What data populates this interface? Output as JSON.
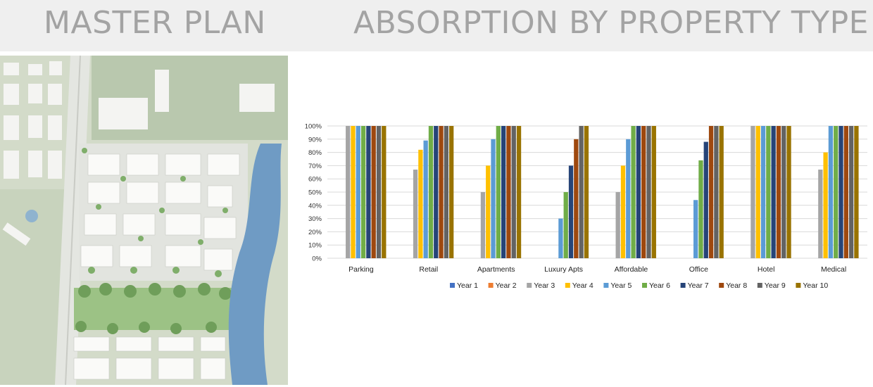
{
  "headings": {
    "left": "MASTER PLAN",
    "right": "ABSORPTION BY PROPERTY TYPE"
  },
  "plan_image": {
    "icon": "site-plan-map",
    "colors": {
      "land": "#cfd8c4",
      "water": "#6f9bc4",
      "trees": "#7fae6a",
      "buildings": "#f3f3f1",
      "roads": "#dadcd8"
    }
  },
  "chart_data": {
    "type": "bar",
    "categories": [
      "Parking",
      "Retail",
      "Apartments",
      "Luxury Apts",
      "Affordable",
      "Office",
      "Hotel",
      "Medical"
    ],
    "ylim": [
      0,
      100
    ],
    "yticks": [
      "0%",
      "10%",
      "20%",
      "30%",
      "40%",
      "50%",
      "60%",
      "70%",
      "80%",
      "90%",
      "100%"
    ],
    "grid": true,
    "legend_position": "bottom",
    "title": "",
    "xlabel": "",
    "ylabel": "",
    "series": [
      {
        "name": "Year 1",
        "color": "#4472c4",
        "values": [
          null,
          null,
          null,
          null,
          null,
          null,
          null,
          null
        ]
      },
      {
        "name": "Year 2",
        "color": "#ed7d31",
        "values": [
          null,
          null,
          null,
          null,
          null,
          null,
          null,
          null
        ]
      },
      {
        "name": "Year 3",
        "color": "#a5a5a5",
        "values": [
          100,
          67,
          50,
          null,
          50,
          null,
          100,
          67
        ]
      },
      {
        "name": "Year 4",
        "color": "#ffc000",
        "values": [
          100,
          82,
          70,
          null,
          70,
          null,
          100,
          80
        ]
      },
      {
        "name": "Year 5",
        "color": "#5b9bd5",
        "values": [
          100,
          89,
          90,
          30,
          90,
          44,
          100,
          100
        ]
      },
      {
        "name": "Year 6",
        "color": "#70ad47",
        "values": [
          100,
          100,
          100,
          50,
          100,
          74,
          100,
          100
        ]
      },
      {
        "name": "Year 7",
        "color": "#264478",
        "values": [
          100,
          100,
          100,
          70,
          100,
          88,
          100,
          100
        ]
      },
      {
        "name": "Year 8",
        "color": "#9e480e",
        "values": [
          100,
          100,
          100,
          90,
          100,
          100,
          100,
          100
        ]
      },
      {
        "name": "Year 9",
        "color": "#636363",
        "values": [
          100,
          100,
          100,
          100,
          100,
          100,
          100,
          100
        ]
      },
      {
        "name": "Year 10",
        "color": "#997300",
        "values": [
          100,
          100,
          100,
          100,
          100,
          100,
          100,
          100
        ]
      }
    ]
  }
}
